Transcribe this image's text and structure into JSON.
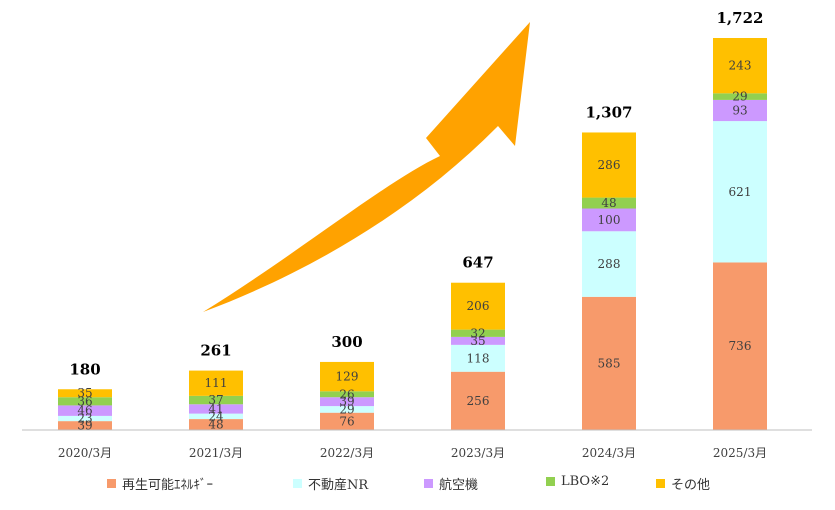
{
  "chart_data": {
    "type": "bar",
    "stacked": true,
    "title": "",
    "xlabel": "",
    "ylabel": "",
    "ylim": [
      0,
      1750
    ],
    "grid": false,
    "legend_position": "bottom",
    "categories": [
      "2020/3月",
      "2021/3月",
      "2022/3月",
      "2023/3月",
      "2024/3月",
      "2025/3月"
    ],
    "totals": [
      "180",
      "261",
      "300",
      "647",
      "1,307",
      "1,722"
    ],
    "series": [
      {
        "name": "再生可能ｴﾈﾙｷﾞｰ",
        "color": "#F79A6B",
        "values": [
          39,
          48,
          76,
          256,
          585,
          736
        ]
      },
      {
        "name": "不動産NR",
        "color": "#CCFFFF",
        "values": [
          23,
          24,
          29,
          118,
          288,
          621
        ]
      },
      {
        "name": "航空機",
        "color": "#CC99FF",
        "values": [
          46,
          41,
          39,
          35,
          100,
          93
        ]
      },
      {
        "name": "LBO※2",
        "color": "#92D050",
        "values": [
          36,
          37,
          26,
          32,
          48,
          29
        ]
      },
      {
        "name": "その他",
        "color": "#FFC000",
        "values": [
          35,
          111,
          129,
          206,
          286,
          243
        ]
      }
    ],
    "annotation": {
      "type": "growth-arrow",
      "color": "#FFA200"
    }
  }
}
